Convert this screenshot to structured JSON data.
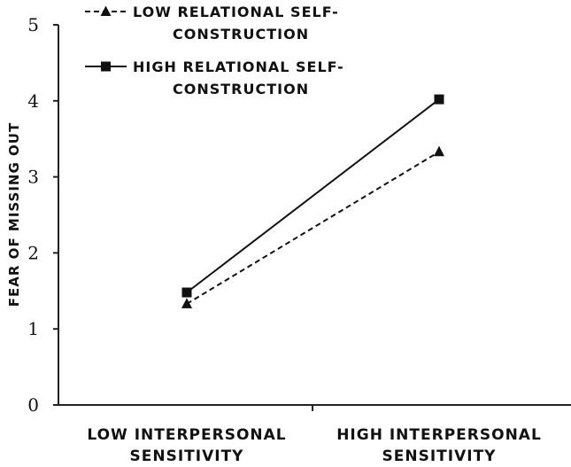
{
  "chart_data": {
    "type": "line",
    "title": "",
    "xlabel": "",
    "ylabel": "FEAR OF MISSING OUT",
    "ylim": [
      0,
      5
    ],
    "yticks": [
      "0",
      "1",
      "2",
      "3",
      "4",
      "5"
    ],
    "categories": [
      [
        "LOW INTERPERSONAL",
        "SENSITIVITY"
      ],
      [
        "HIGH INTERPERSONAL",
        "SENSITIVITY"
      ]
    ],
    "legend_position": "top-left",
    "grid": false,
    "series": [
      {
        "name": [
          "LOW RELATIONAL SELF-",
          "CONSTRUCTION"
        ],
        "marker": "triangle",
        "line_style": "dashed",
        "color": "#111111",
        "values": [
          1.33,
          3.33
        ]
      },
      {
        "name": [
          "HIGH RELATIONAL SELF-",
          "CONSTRUCTION"
        ],
        "marker": "square",
        "line_style": "solid",
        "color": "#111111",
        "values": [
          1.48,
          4.02
        ]
      }
    ]
  }
}
